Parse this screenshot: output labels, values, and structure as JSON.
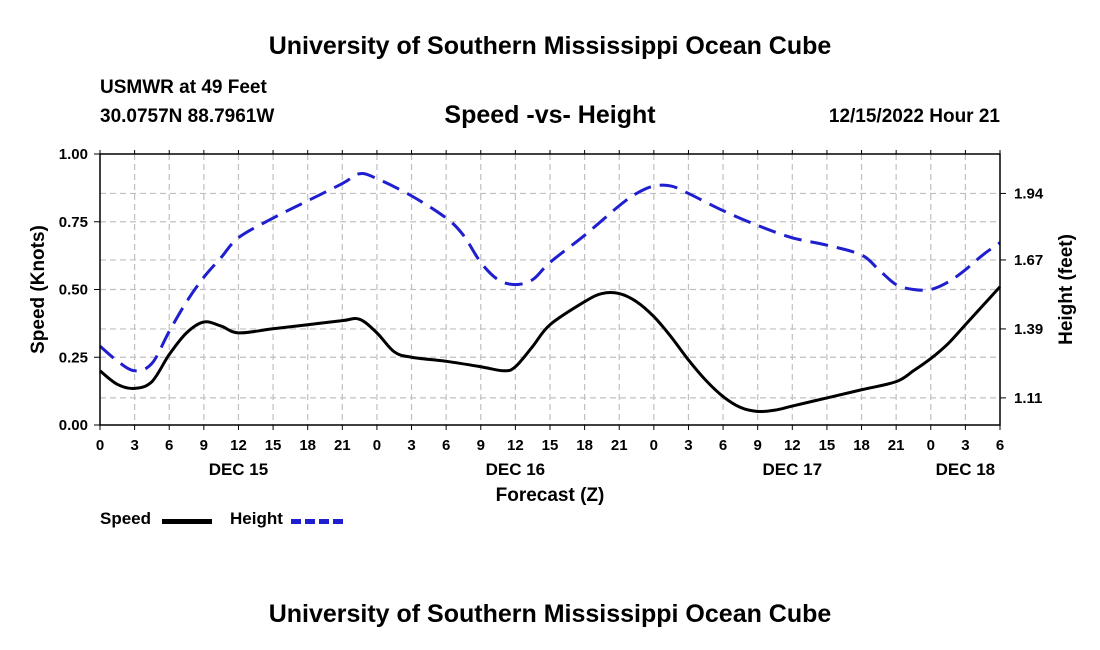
{
  "header": {
    "title": "University of Southern Mississippi Ocean Cube",
    "station": "USMWR at 49 Feet",
    "coordinates": "30.0757N  88.7961W",
    "datetime": "12/15/2022 Hour 21"
  },
  "footer": {
    "title": "University of Southern Mississippi Ocean Cube"
  },
  "chart_data": {
    "type": "line",
    "title": "Speed -vs- Height",
    "xlabel": "Forecast (Z)",
    "ylabel": "Speed (Knots)",
    "y2label": "Height (feet)",
    "grid": true,
    "x_range_hours": [
      0,
      78
    ],
    "x_ticks": [
      {
        "hour": 0,
        "label": "0"
      },
      {
        "hour": 3,
        "label": "3"
      },
      {
        "hour": 6,
        "label": "6"
      },
      {
        "hour": 9,
        "label": "9"
      },
      {
        "hour": 12,
        "label": "12"
      },
      {
        "hour": 15,
        "label": "15"
      },
      {
        "hour": 18,
        "label": "18"
      },
      {
        "hour": 21,
        "label": "21"
      },
      {
        "hour": 24,
        "label": "0"
      },
      {
        "hour": 27,
        "label": "3"
      },
      {
        "hour": 30,
        "label": "6"
      },
      {
        "hour": 33,
        "label": "9"
      },
      {
        "hour": 36,
        "label": "12"
      },
      {
        "hour": 39,
        "label": "15"
      },
      {
        "hour": 42,
        "label": "18"
      },
      {
        "hour": 45,
        "label": "21"
      },
      {
        "hour": 48,
        "label": "0"
      },
      {
        "hour": 51,
        "label": "3"
      },
      {
        "hour": 54,
        "label": "6"
      },
      {
        "hour": 57,
        "label": "9"
      },
      {
        "hour": 60,
        "label": "12"
      },
      {
        "hour": 63,
        "label": "15"
      },
      {
        "hour": 66,
        "label": "18"
      },
      {
        "hour": 69,
        "label": "21"
      },
      {
        "hour": 72,
        "label": "0"
      },
      {
        "hour": 75,
        "label": "3"
      },
      {
        "hour": 78,
        "label": "6"
      }
    ],
    "day_labels": [
      {
        "hour": 12,
        "label": "DEC 15"
      },
      {
        "hour": 36,
        "label": "DEC 16"
      },
      {
        "hour": 60,
        "label": "DEC 17"
      },
      {
        "hour": 75,
        "label": "DEC 18"
      }
    ],
    "y_left": {
      "range": [
        0,
        1
      ],
      "ticks": [
        {
          "value": 0,
          "label": "0.00"
        },
        {
          "value": 0.25,
          "label": "0.25"
        },
        {
          "value": 0.5,
          "label": "0.50"
        },
        {
          "value": 0.75,
          "label": "0.75"
        },
        {
          "value": 1,
          "label": "1.00"
        }
      ]
    },
    "y_right": {
      "range": [
        1.0,
        2.1
      ],
      "ticks": [
        {
          "value": 1.11,
          "label": "1.11"
        },
        {
          "value": 1.39,
          "label": "1.39"
        },
        {
          "value": 1.67,
          "label": "1.67"
        },
        {
          "value": 1.94,
          "label": "1.94"
        }
      ]
    },
    "series": [
      {
        "name": "Speed",
        "axis": "left",
        "color": "#000000",
        "style": "solid",
        "points": [
          [
            0,
            0.2
          ],
          [
            1.5,
            0.15
          ],
          [
            3,
            0.135
          ],
          [
            4.5,
            0.16
          ],
          [
            6,
            0.26
          ],
          [
            7.5,
            0.34
          ],
          [
            9,
            0.38
          ],
          [
            10.5,
            0.365
          ],
          [
            12,
            0.34
          ],
          [
            15,
            0.355
          ],
          [
            18,
            0.37
          ],
          [
            21,
            0.385
          ],
          [
            22.5,
            0.39
          ],
          [
            24,
            0.34
          ],
          [
            25.5,
            0.27
          ],
          [
            27,
            0.25
          ],
          [
            30,
            0.235
          ],
          [
            33,
            0.215
          ],
          [
            35,
            0.2
          ],
          [
            36,
            0.215
          ],
          [
            37.5,
            0.29
          ],
          [
            39,
            0.37
          ],
          [
            42,
            0.455
          ],
          [
            43.5,
            0.485
          ],
          [
            45,
            0.485
          ],
          [
            46.5,
            0.455
          ],
          [
            48,
            0.4
          ],
          [
            49.5,
            0.325
          ],
          [
            51,
            0.24
          ],
          [
            52.5,
            0.165
          ],
          [
            54,
            0.105
          ],
          [
            55.5,
            0.065
          ],
          [
            57,
            0.05
          ],
          [
            58.5,
            0.055
          ],
          [
            60,
            0.07
          ],
          [
            63,
            0.1
          ],
          [
            66,
            0.13
          ],
          [
            69,
            0.16
          ],
          [
            70.5,
            0.2
          ],
          [
            72,
            0.245
          ],
          [
            73.5,
            0.3
          ],
          [
            75,
            0.37
          ],
          [
            76.5,
            0.44
          ],
          [
            78,
            0.51
          ]
        ]
      },
      {
        "name": "Height",
        "axis": "right",
        "color": "#1f1fcf",
        "style": "dashed",
        "points": [
          [
            0,
            1.32
          ],
          [
            1.5,
            1.26
          ],
          [
            3,
            1.22
          ],
          [
            4.5,
            1.25
          ],
          [
            6,
            1.38
          ],
          [
            7.5,
            1.5
          ],
          [
            9,
            1.6
          ],
          [
            10.5,
            1.68
          ],
          [
            12,
            1.76
          ],
          [
            15,
            1.84
          ],
          [
            18,
            1.91
          ],
          [
            21,
            1.98
          ],
          [
            22.5,
            2.02
          ],
          [
            24,
            2.0
          ],
          [
            27,
            1.93
          ],
          [
            30,
            1.84
          ],
          [
            31.5,
            1.77
          ],
          [
            33,
            1.66
          ],
          [
            34.5,
            1.59
          ],
          [
            36,
            1.57
          ],
          [
            37.5,
            1.59
          ],
          [
            39,
            1.66
          ],
          [
            42,
            1.77
          ],
          [
            45,
            1.89
          ],
          [
            46.5,
            1.94
          ],
          [
            48,
            1.97
          ],
          [
            49.5,
            1.97
          ],
          [
            51,
            1.94
          ],
          [
            54,
            1.87
          ],
          [
            57,
            1.81
          ],
          [
            60,
            1.76
          ],
          [
            63,
            1.73
          ],
          [
            66,
            1.69
          ],
          [
            67.5,
            1.63
          ],
          [
            69,
            1.57
          ],
          [
            70.5,
            1.55
          ],
          [
            72,
            1.55
          ],
          [
            73.5,
            1.58
          ],
          [
            75,
            1.63
          ],
          [
            76.5,
            1.69
          ],
          [
            78,
            1.74
          ]
        ]
      }
    ],
    "legend": {
      "placement": "bottom-left",
      "items": [
        {
          "label": "Speed",
          "color": "#000000",
          "style": "solid"
        },
        {
          "label": "Height",
          "color": "#1f1fcf",
          "style": "dashed"
        }
      ]
    }
  }
}
